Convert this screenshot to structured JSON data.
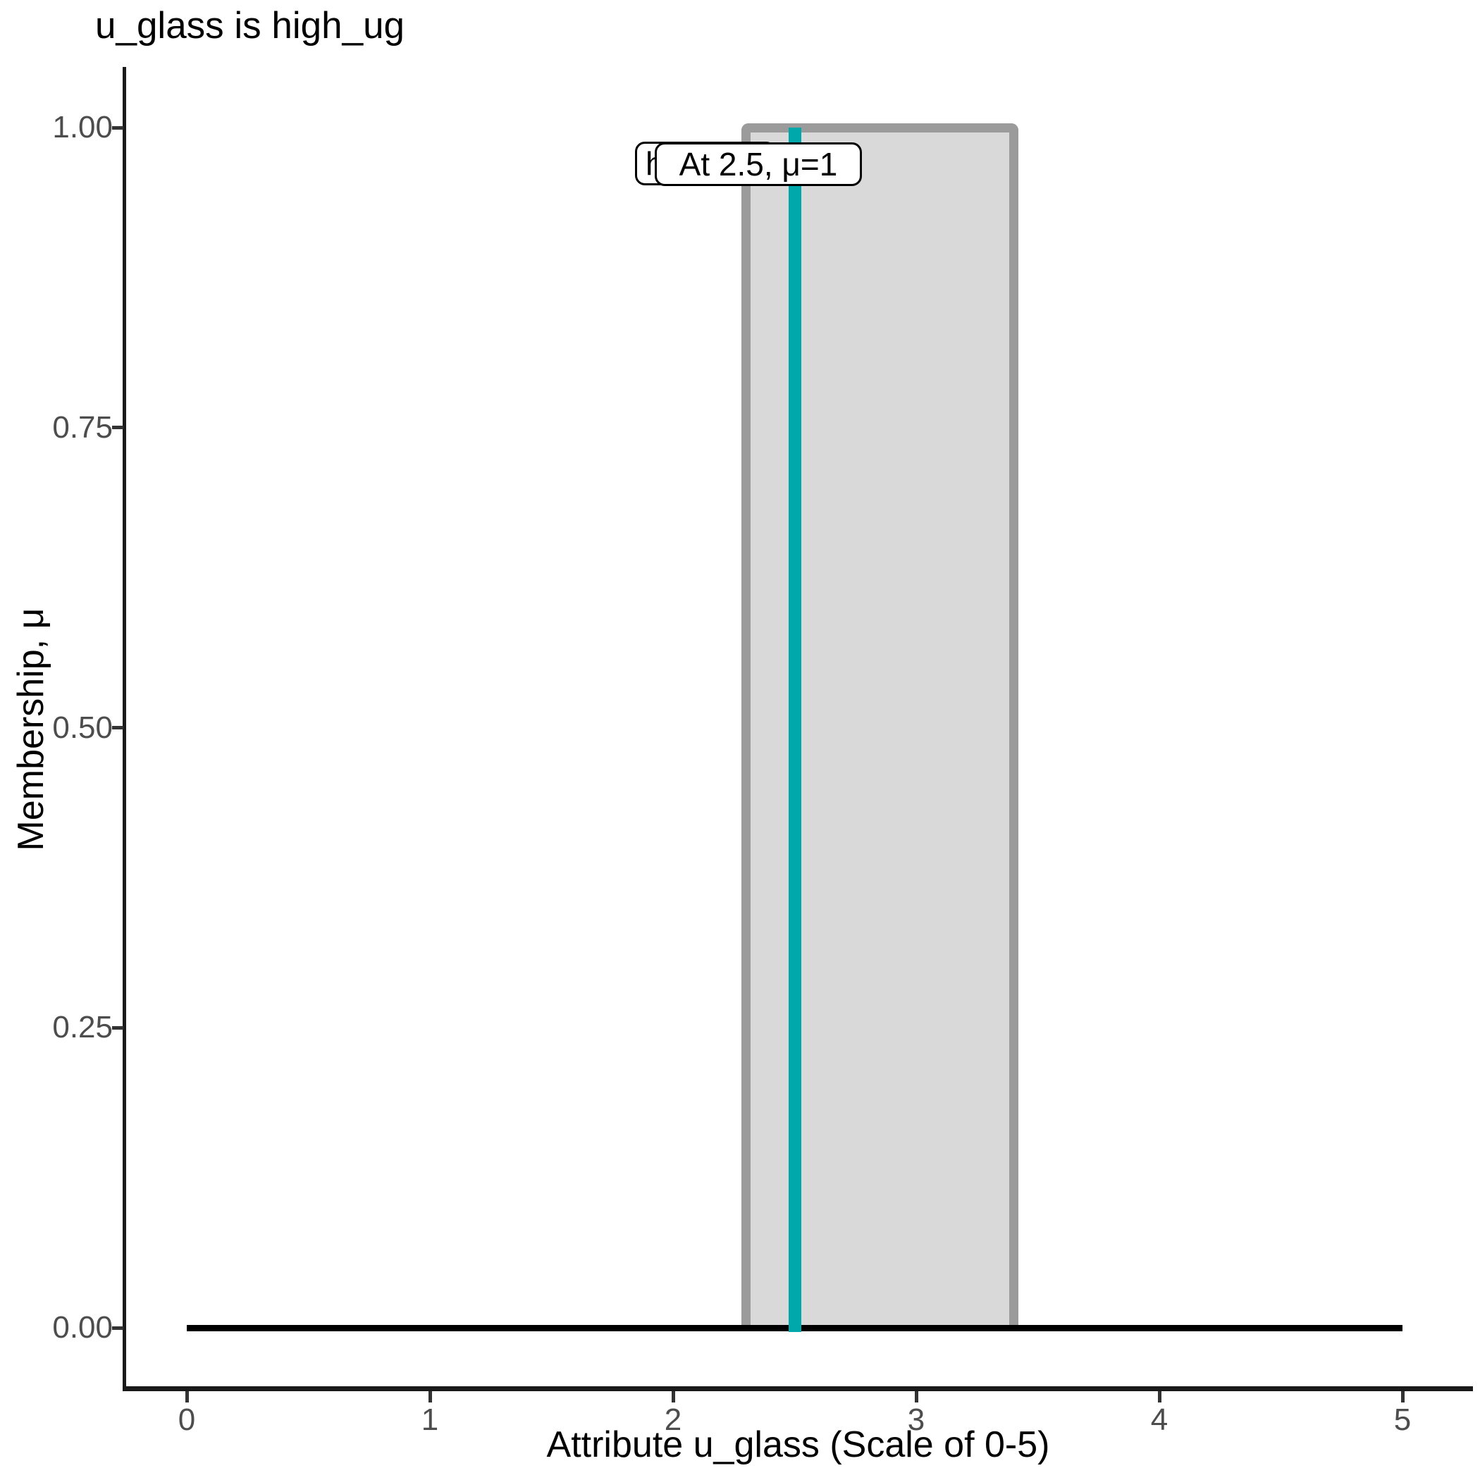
{
  "chart_data": {
    "type": "area",
    "title": "u_glass is high_ug",
    "xlabel": "Attribute u_glass (Scale of 0-5)",
    "ylabel": "Membership, μ",
    "xlim": [
      0,
      5
    ],
    "ylim": [
      0,
      1
    ],
    "x_ticks": [
      0,
      1,
      2,
      3,
      4,
      5
    ],
    "x_tick_labels": [
      "0",
      "1",
      "2",
      "3",
      "4",
      "5"
    ],
    "y_ticks": [
      0,
      0.25,
      0.5,
      0.75,
      1
    ],
    "y_tick_labels": [
      "0.00",
      "0.25",
      "0.50",
      "0.75",
      "1.00"
    ],
    "grid": "off",
    "legend": "none",
    "membership_function": {
      "name": "high_ug",
      "shape": "rectangular",
      "x_from": 2.3,
      "x_to": 3.4,
      "mu_inside": 1,
      "mu_outside": 0
    },
    "baseline": {
      "y": 0,
      "x_from": 0,
      "x_to": 5
    },
    "marker": {
      "x": 2.5,
      "mu": 1
    },
    "annotations": [
      {
        "id": "set-label",
        "text": "high_ug"
      },
      {
        "id": "marker-label",
        "text": "At 2.5, μ=1"
      }
    ],
    "colors": {
      "marker_line": "#00A7AB",
      "region_fill": "#D9D9D9",
      "region_border": "#9B9B9B",
      "baseline": "#000000",
      "axis_line": "#1a1a1a",
      "tick_text": "#4d4d4d",
      "title_text": "#000000"
    }
  },
  "labels": {
    "set_label": "high_ug",
    "marker_label": "At 2.5, μ=1"
  }
}
